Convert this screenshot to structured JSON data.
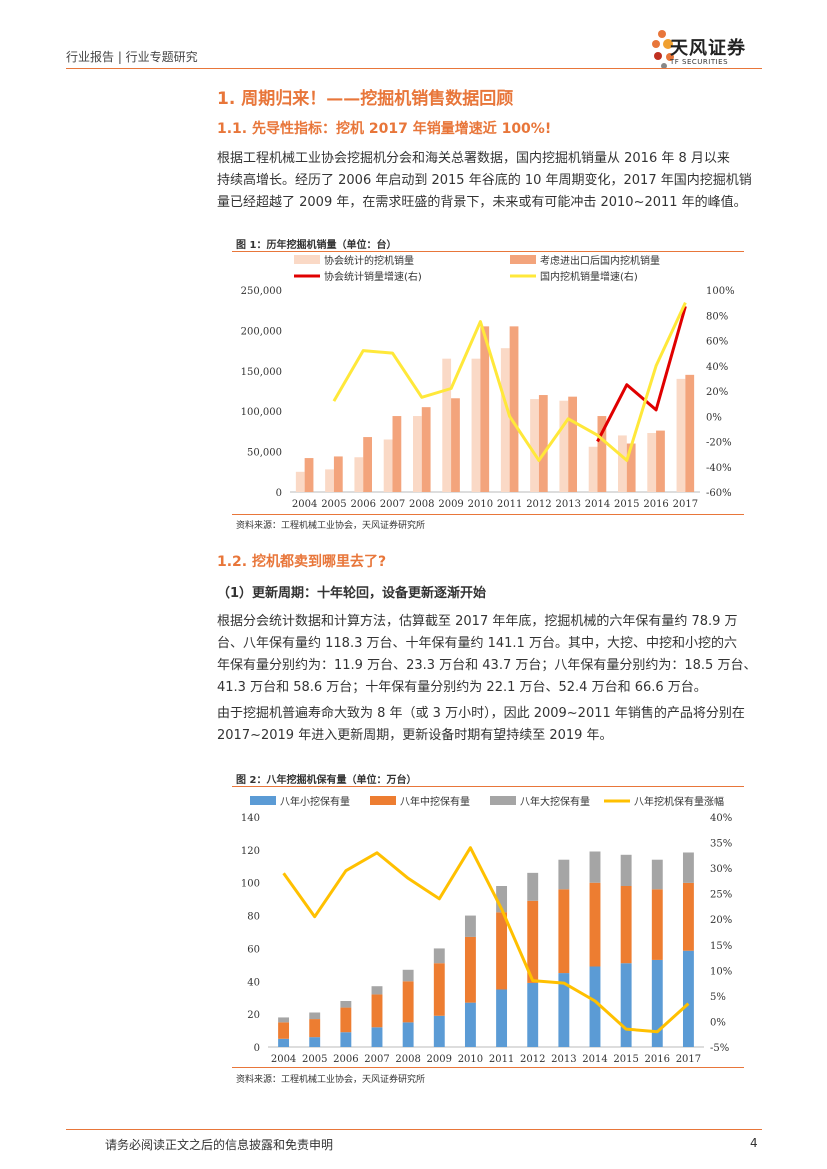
{
  "header": {
    "left_text": "行业报告 | 行业专题研究",
    "logo_cn": "天风证券",
    "logo_en": "TF SECURITIES"
  },
  "section1": {
    "title": "1. 周期归来！——挖掘机销售数据回顾"
  },
  "section1_1": {
    "title": "1.1. 先导性指标：挖机 2017 年销量增速近 100%!",
    "lines": [
      "根据工程机械工业协会挖掘机分会和海关总署数据，国内挖掘机销量从 2016 年 8 月以来",
      "持续高增长。经历了 2006 年启动到 2015 年谷底的 10 年周期变化，2017 年国内挖掘机销",
      "量已经超越了 2009 年，在需求旺盛的背景下，未来或有可能冲击 2010~2011 年的峰值。"
    ]
  },
  "figure1": {
    "caption": "图 1：历年挖掘机销量（单位：台）",
    "source": "资料来源：工程机械工业协会，天风证券研究所"
  },
  "section1_2": {
    "title": "1.2. 挖机都卖到哪里去了?",
    "subhead": "（1）更新周期：十年轮回，设备更新逐渐开始",
    "para1": [
      "根据分会统计数据和计算方法，估算截至 2017 年年底，挖掘机械的六年保有量约 78.9 万",
      "台、八年保有量约 118.3 万台、十年保有量约 141.1 万台。其中，大挖、中挖和小挖的六",
      "年保有量分别约为：11.9 万台、23.3 万台和 43.7 万台；八年保有量分别约为：18.5 万台、",
      "41.3 万台和 58.6 万台；十年保有量分别约为 22.1 万台、52.4 万台和 66.6 万台。"
    ],
    "para2": [
      "由于挖掘机普遍寿命大致为 8 年（或 3 万小时），因此 2009~2011 年销售的产品将分别在",
      "2017~2019 年进入更新周期，更新设备时期有望持续至 2019 年。"
    ]
  },
  "figure2": {
    "caption": "图 2：八年挖掘机保有量（单位：万台）",
    "source": "资料来源：工程机械工业协会，天风证券研究所"
  },
  "footer": {
    "disclaimer": "请务必阅读正文之后的信息披露和免责申明",
    "page": "4"
  },
  "chart_data": [
    {
      "type": "bar",
      "categories": [
        "2004",
        "2005",
        "2006",
        "2007",
        "2008",
        "2009",
        "2010",
        "2011",
        "2012",
        "2013",
        "2014",
        "2015",
        "2016",
        "2017"
      ],
      "series": [
        {
          "name": "协会统计的挖机销量",
          "axis": "left",
          "color": "#FAD9C6",
          "values": [
            25000,
            28000,
            43000,
            65000,
            94000,
            165000,
            165000,
            178000,
            115000,
            113000,
            56000,
            70000,
            73000,
            140000
          ]
        },
        {
          "name": "考虑进出口后国内挖机销量",
          "axis": "left",
          "color": "#F3A47C",
          "values": [
            42000,
            44000,
            68000,
            94000,
            105000,
            116000,
            205000,
            205000,
            120000,
            118000,
            94000,
            60000,
            76000,
            145000
          ]
        },
        {
          "name": "协会统计销量增速(右)",
          "axis": "right",
          "type": "line",
          "color": "#E00000",
          "values": [
            null,
            null,
            null,
            null,
            null,
            null,
            null,
            null,
            null,
            null,
            -20,
            25,
            5,
            87
          ]
        },
        {
          "name": "国内挖机销量增速(右)",
          "axis": "right",
          "type": "line",
          "color": "#FFE83A",
          "values": [
            null,
            12,
            52,
            50,
            15,
            22,
            75,
            0,
            -35,
            -2,
            -15,
            -35,
            40,
            90
          ]
        }
      ],
      "yticks_left": [
        "250,000",
        "200,000",
        "150,000",
        "100,000",
        "50,000",
        "0"
      ],
      "yticks_right": [
        "100%",
        "80%",
        "60%",
        "40%",
        "20%",
        "0%",
        "-20%",
        "-40%",
        "-60%"
      ],
      "ylim_left": [
        0,
        250000
      ],
      "ylim_right": [
        -60,
        100
      ],
      "legend_position": "top"
    },
    {
      "type": "bar",
      "stacked": true,
      "categories": [
        "2004",
        "2005",
        "2006",
        "2007",
        "2008",
        "2009",
        "2010",
        "2011",
        "2012",
        "2013",
        "2014",
        "2015",
        "2016",
        "2017"
      ],
      "series": [
        {
          "name": "八年小挖保有量",
          "axis": "left",
          "color": "#5B9BD5",
          "values": [
            5,
            6,
            9,
            12,
            15,
            19,
            27,
            35,
            39,
            45,
            49,
            51,
            53,
            58.6
          ]
        },
        {
          "name": "八年中挖保有量",
          "axis": "left",
          "color": "#ED7D31",
          "values": [
            10,
            11,
            15,
            20,
            25,
            32,
            40,
            47,
            50,
            51,
            51,
            47,
            43,
            41.3
          ]
        },
        {
          "name": "八年大挖保有量",
          "axis": "left",
          "color": "#A5A5A5",
          "values": [
            3,
            4,
            4,
            5,
            7,
            9,
            13,
            16,
            17,
            18,
            19,
            19,
            18,
            18.5
          ]
        },
        {
          "name": "八年挖机保有量涨幅",
          "axis": "right",
          "type": "line",
          "color": "#FFC000",
          "values": [
            29,
            20.5,
            29.5,
            33,
            28,
            24,
            34,
            22,
            8,
            7.5,
            4,
            -1.5,
            -2,
            3.5
          ]
        }
      ],
      "yticks_left": [
        "140",
        "120",
        "100",
        "80",
        "60",
        "40",
        "20",
        "0"
      ],
      "yticks_right": [
        "40%",
        "35%",
        "30%",
        "25%",
        "20%",
        "15%",
        "10%",
        "5%",
        "0%",
        "-5%"
      ],
      "ylim_left": [
        0,
        140
      ],
      "ylim_right": [
        -5,
        40
      ],
      "legend_position": "top"
    }
  ]
}
